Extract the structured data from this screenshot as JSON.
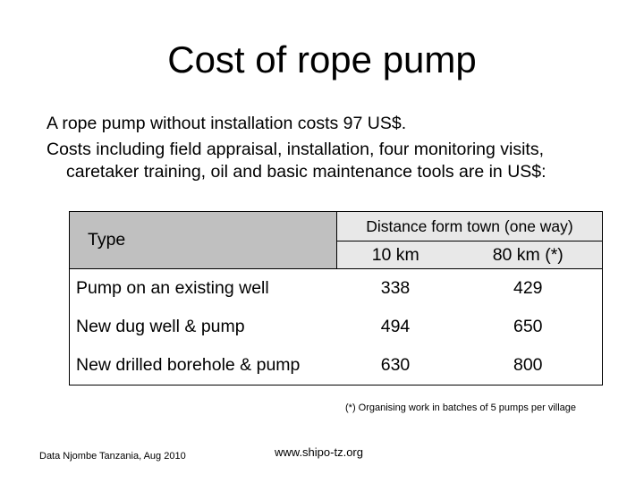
{
  "slide": {
    "title": "Cost of rope pump",
    "intro_line1": "A rope pump without installation costs 97 US$.",
    "intro_line2": "Costs including field appraisal, installation, four monitoring visits, caretaker training, oil and basic maintenance tools are in US$:"
  },
  "table": {
    "type_header": "Type",
    "distance_header": "Distance form town (one way)",
    "col_10km": "10 km",
    "col_80km": "80 km (*)",
    "rows": [
      {
        "type": "Pump on an existing well",
        "km10": "338",
        "km80": "429"
      },
      {
        "type": "New dug well & pump",
        "km10": "494",
        "km80": "650"
      },
      {
        "type": "New drilled borehole & pump",
        "km10": "630",
        "km80": "800"
      }
    ]
  },
  "footnote": "(*) Organising work in batches of 5 pumps per village",
  "source": "Data Njombe Tanzania, Aug 2010",
  "website": "www.shipo-tz.org",
  "colors": {
    "header_light": "#e8e8e8",
    "header_dark": "#c0c0c0"
  }
}
